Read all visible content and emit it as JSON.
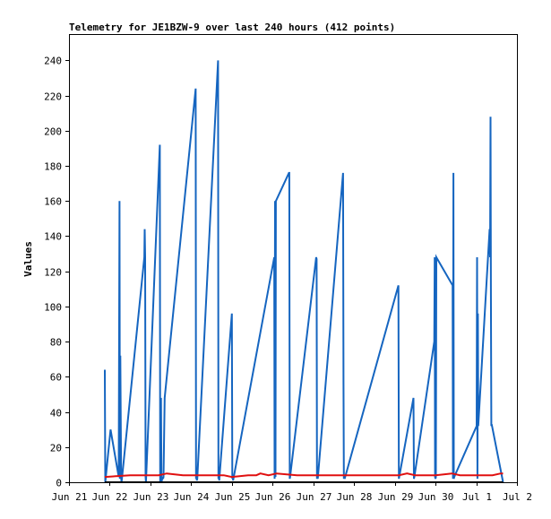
{
  "chart_data": {
    "type": "line",
    "title": "Telemetry for JE1BZW-9 over last 240 hours (412 points)",
    "xlabel": "",
    "ylabel": "Values",
    "ylim": [
      0,
      255
    ],
    "xlim": [
      0,
      11
    ],
    "y_ticks": [
      0,
      20,
      40,
      60,
      80,
      100,
      120,
      140,
      160,
      180,
      200,
      220,
      240
    ],
    "x_ticks": [
      {
        "x": 0,
        "label": "Jun 21"
      },
      {
        "x": 1,
        "label": "Jun 22"
      },
      {
        "x": 2,
        "label": "Jun 23"
      },
      {
        "x": 3,
        "label": "Jun 24"
      },
      {
        "x": 4,
        "label": "Jun 25"
      },
      {
        "x": 5,
        "label": "Jun 26"
      },
      {
        "x": 6,
        "label": "Jun 27"
      },
      {
        "x": 7,
        "label": "Jun 28"
      },
      {
        "x": 8,
        "label": "Jun 29"
      },
      {
        "x": 9,
        "label": "Jun 30"
      },
      {
        "x": 10,
        "label": "Jul 1"
      },
      {
        "x": 11,
        "label": "Jul 2"
      }
    ],
    "grid": false,
    "legend": "none",
    "series": [
      {
        "color": "#1565c0",
        "x": [
          0.88,
          0.89,
          0.9,
          1.02,
          1.22,
          1.24,
          1.25,
          1.26,
          1.28,
          1.29,
          1.3,
          1.85,
          1.86,
          1.87,
          1.88,
          1.89,
          2.23,
          2.24,
          2.25,
          2.26,
          2.27,
          2.3,
          2.31,
          2.32,
          2.35,
          3.11,
          3.12,
          3.13,
          3.14,
          3.15,
          3.66,
          3.67,
          3.68,
          3.69,
          4.0,
          4.01,
          4.02,
          4.03,
          5.04,
          5.05,
          5.06,
          5.07,
          5.08,
          5.4,
          5.41,
          5.42,
          5.43,
          6.07,
          6.08,
          6.09,
          6.1,
          6.11,
          6.73,
          6.74,
          6.75,
          6.76,
          6.77,
          8.09,
          8.1,
          8.11,
          8.46,
          8.47,
          8.48,
          8.97,
          8.98,
          8.99,
          9.0,
          9.01,
          9.02,
          9.42,
          9.43,
          9.44,
          9.45,
          9.46,
          10.01,
          10.02,
          10.03,
          10.04,
          10.05,
          10.33,
          10.34,
          10.35,
          10.36,
          10.37,
          10.38,
          10.66
        ],
        "values": [
          64,
          0,
          2,
          30,
          3,
          160,
          2,
          72,
          3,
          0,
          2,
          128,
          144,
          128,
          3,
          0,
          192,
          0,
          3,
          48,
          0,
          3,
          2,
          3,
          48,
          224,
          2,
          3,
          1,
          2,
          240,
          2,
          3,
          1,
          96,
          2,
          3,
          1,
          128,
          2,
          160,
          3,
          160,
          176,
          176,
          2,
          3,
          128,
          127,
          2,
          3,
          2,
          176,
          56,
          2,
          3,
          2,
          112,
          2,
          3,
          48,
          2,
          3,
          80,
          128,
          3,
          2,
          3,
          128,
          112,
          2,
          176,
          2,
          3,
          32,
          128,
          2,
          96,
          32,
          144,
          128,
          208,
          112,
          32,
          33,
          0
        ]
      },
      {
        "color": "#e01010",
        "x": [
          0.88,
          1.5,
          2.2,
          2.4,
          2.8,
          3.2,
          3.5,
          3.8,
          4.0,
          4.4,
          4.6,
          4.7,
          4.9,
          5.1,
          5.6,
          6.2,
          6.8,
          7.5,
          8.1,
          8.3,
          8.5,
          9.0,
          9.4,
          9.6,
          10.1,
          10.4,
          10.6,
          10.66
        ],
        "values": [
          3,
          4,
          4,
          5,
          4,
          4,
          4,
          4,
          3,
          4,
          4,
          5,
          4,
          5,
          4,
          4,
          4,
          4,
          4,
          5,
          4,
          4,
          5,
          4,
          4,
          4,
          5,
          5
        ]
      },
      {
        "color": "#000000",
        "x": [
          0.88,
          10.66
        ],
        "values": [
          0,
          0
        ]
      }
    ]
  }
}
